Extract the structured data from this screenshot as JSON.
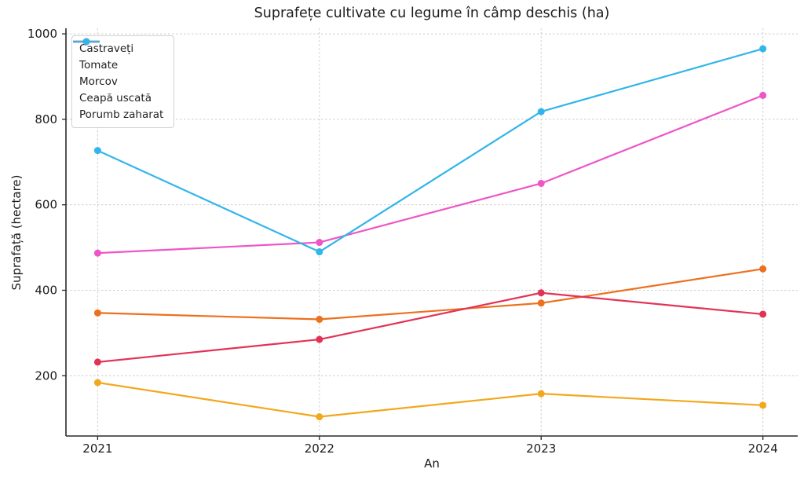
{
  "chart_data": {
    "type": "line",
    "title": "Suprafețe cultivate cu legume în câmp deschis (ha)",
    "xlabel": "An",
    "ylabel": "Suprafață (hectare)",
    "x": [
      2021,
      2022,
      2023,
      2024
    ],
    "x_tick_labels": [
      "2021",
      "2022",
      "2023",
      "2024"
    ],
    "y_ticks": [
      200,
      400,
      600,
      800,
      1000
    ],
    "y_tick_labels": [
      "200",
      "400",
      "600",
      "800",
      "1000"
    ],
    "xlim": [
      2020.857,
      2024.157
    ],
    "ylim": [
      59,
      1013
    ],
    "grid": "dashed, both axes",
    "legend_position": "upper-left",
    "series": [
      {
        "name": "Castraveți",
        "color": "#F2A81D",
        "values": [
          184,
          104,
          158,
          131
        ]
      },
      {
        "name": "Tomate",
        "color": "#ED701E",
        "values": [
          347,
          332,
          370,
          450
        ]
      },
      {
        "name": "Morcov",
        "color": "#E23357",
        "values": [
          232,
          285,
          394,
          344
        ]
      },
      {
        "name": "Ceapă uscată",
        "color": "#EE55C6",
        "values": [
          487,
          512,
          650,
          856
        ]
      },
      {
        "name": "Porumb zaharat",
        "color": "#31B5EA",
        "values": [
          727,
          490,
          818,
          965
        ]
      }
    ],
    "colors": {
      "grid": "#cdcdcd",
      "spine": "#2a2a2a",
      "tick": "#2a2a2a",
      "text": "#1c1c1c",
      "background": "#ffffff"
    }
  }
}
